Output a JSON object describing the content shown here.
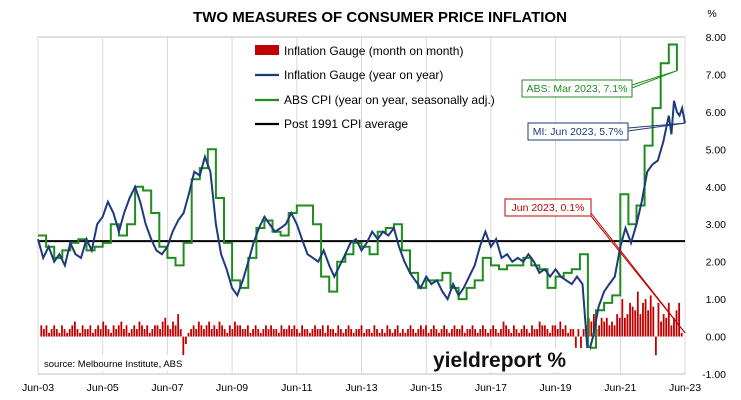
{
  "chart_data": {
    "type": "line",
    "title": "TWO MEASURES OF CONSUMER PRICE INFLATION",
    "y_unit": "%",
    "ylim": [
      -1.0,
      8.0
    ],
    "y_ticks": [
      "8.00",
      "7.00",
      "6.00",
      "5.00",
      "4.00",
      "3.00",
      "2.00",
      "1.00",
      "0.00",
      "-1.00"
    ],
    "y_tick_values": [
      8,
      7,
      6,
      5,
      4,
      3,
      2,
      1,
      0,
      -1
    ],
    "x_range": [
      2003.42,
      2023.42
    ],
    "x_ticks": [
      "Jun-03",
      "Jun-05",
      "Jun-07",
      "Jun-09",
      "Jun-11",
      "Jun-13",
      "Jun-15",
      "Jun-17",
      "Jun-19",
      "Jun-21",
      "Jun-23"
    ],
    "x_tick_values": [
      2003.42,
      2005.42,
      2007.42,
      2009.42,
      2011.42,
      2013.42,
      2015.42,
      2017.42,
      2019.42,
      2021.42,
      2023.42
    ],
    "grid": "vertical",
    "legend_position": "top-center",
    "legend": [
      {
        "label": "Inflation Gauge (month on month)",
        "color": "#c00000",
        "kind": "bar"
      },
      {
        "label": "Inflation Gauge (year on year)",
        "color": "#1f3a7a",
        "kind": "line"
      },
      {
        "label": "ABS CPI (year on year, seasonally adj.)",
        "color": "#1e8c1e",
        "kind": "line"
      },
      {
        "label": "Post 1991 CPI average",
        "color": "#000000",
        "kind": "line"
      }
    ],
    "average_line": {
      "label": "Post 1991 CPI average",
      "value": 2.55
    },
    "series": [
      {
        "name": "ABS CPI (year on year, seasonally adj.)",
        "color": "#1e8c1e",
        "step": true,
        "points": [
          [
            2003.42,
            2.7
          ],
          [
            2003.67,
            2.4
          ],
          [
            2003.92,
            2.1
          ],
          [
            2004.17,
            2.3
          ],
          [
            2004.42,
            2.5
          ],
          [
            2004.67,
            2.6
          ],
          [
            2004.92,
            2.3
          ],
          [
            2005.17,
            2.4
          ],
          [
            2005.42,
            2.5
          ],
          [
            2005.67,
            3.0
          ],
          [
            2005.92,
            2.7
          ],
          [
            2006.17,
            3.0
          ],
          [
            2006.42,
            4.0
          ],
          [
            2006.67,
            3.9
          ],
          [
            2006.92,
            3.3
          ],
          [
            2007.17,
            2.4
          ],
          [
            2007.42,
            2.1
          ],
          [
            2007.67,
            1.9
          ],
          [
            2007.92,
            2.5
          ],
          [
            2008.17,
            4.2
          ],
          [
            2008.42,
            4.5
          ],
          [
            2008.67,
            5.0
          ],
          [
            2008.92,
            3.7
          ],
          [
            2009.17,
            2.5
          ],
          [
            2009.42,
            1.5
          ],
          [
            2009.67,
            1.3
          ],
          [
            2009.92,
            2.1
          ],
          [
            2010.17,
            2.9
          ],
          [
            2010.42,
            3.1
          ],
          [
            2010.67,
            2.8
          ],
          [
            2010.92,
            2.7
          ],
          [
            2011.17,
            3.3
          ],
          [
            2011.42,
            3.5
          ],
          [
            2011.67,
            3.5
          ],
          [
            2011.92,
            3.0
          ],
          [
            2012.17,
            1.6
          ],
          [
            2012.42,
            1.2
          ],
          [
            2012.67,
            2.0
          ],
          [
            2012.92,
            2.2
          ],
          [
            2013.17,
            2.5
          ],
          [
            2013.42,
            2.4
          ],
          [
            2013.67,
            2.2
          ],
          [
            2013.92,
            2.8
          ],
          [
            2014.17,
            2.9
          ],
          [
            2014.42,
            3.0
          ],
          [
            2014.67,
            2.3
          ],
          [
            2014.92,
            1.7
          ],
          [
            2015.17,
            1.3
          ],
          [
            2015.42,
            1.5
          ],
          [
            2015.67,
            1.5
          ],
          [
            2015.92,
            1.7
          ],
          [
            2016.17,
            1.3
          ],
          [
            2016.42,
            1.0
          ],
          [
            2016.67,
            1.3
          ],
          [
            2016.92,
            1.5
          ],
          [
            2017.17,
            2.1
          ],
          [
            2017.42,
            1.9
          ],
          [
            2017.67,
            1.8
          ],
          [
            2017.92,
            1.9
          ],
          [
            2018.17,
            1.9
          ],
          [
            2018.42,
            2.1
          ],
          [
            2018.67,
            1.9
          ],
          [
            2018.92,
            1.8
          ],
          [
            2019.17,
            1.3
          ],
          [
            2019.42,
            1.6
          ],
          [
            2019.67,
            1.7
          ],
          [
            2019.92,
            1.8
          ],
          [
            2020.17,
            2.2
          ],
          [
            2020.42,
            -0.3
          ],
          [
            2020.67,
            0.7
          ],
          [
            2020.92,
            0.9
          ],
          [
            2021.17,
            1.1
          ],
          [
            2021.42,
            3.8
          ],
          [
            2021.67,
            3.0
          ],
          [
            2021.92,
            3.5
          ],
          [
            2022.17,
            5.1
          ],
          [
            2022.42,
            6.1
          ],
          [
            2022.67,
            7.3
          ],
          [
            2022.92,
            7.8
          ],
          [
            2023.17,
            7.1
          ]
        ]
      },
      {
        "name": "Inflation Gauge (year on year)",
        "color": "#1f3a7a",
        "step": false,
        "points": [
          [
            2003.42,
            2.6
          ],
          [
            2003.58,
            2.1
          ],
          [
            2003.75,
            2.4
          ],
          [
            2003.92,
            2.0
          ],
          [
            2004.08,
            2.2
          ],
          [
            2004.25,
            1.9
          ],
          [
            2004.42,
            2.5
          ],
          [
            2004.58,
            2.2
          ],
          [
            2004.75,
            2.1
          ],
          [
            2004.92,
            2.6
          ],
          [
            2005.08,
            2.3
          ],
          [
            2005.25,
            3.0
          ],
          [
            2005.42,
            3.2
          ],
          [
            2005.58,
            3.6
          ],
          [
            2005.75,
            3.3
          ],
          [
            2005.92,
            2.8
          ],
          [
            2006.08,
            3.3
          ],
          [
            2006.25,
            3.7
          ],
          [
            2006.42,
            4.0
          ],
          [
            2006.58,
            3.6
          ],
          [
            2006.75,
            3.0
          ],
          [
            2006.92,
            2.6
          ],
          [
            2007.08,
            2.3
          ],
          [
            2007.25,
            2.2
          ],
          [
            2007.42,
            2.4
          ],
          [
            2007.58,
            2.8
          ],
          [
            2007.75,
            3.1
          ],
          [
            2007.92,
            3.3
          ],
          [
            2008.08,
            3.8
          ],
          [
            2008.25,
            4.4
          ],
          [
            2008.42,
            4.3
          ],
          [
            2008.58,
            4.8
          ],
          [
            2008.75,
            4.4
          ],
          [
            2008.92,
            3.0
          ],
          [
            2009.08,
            2.2
          ],
          [
            2009.25,
            1.8
          ],
          [
            2009.42,
            1.3
          ],
          [
            2009.58,
            1.1
          ],
          [
            2009.75,
            1.5
          ],
          [
            2009.92,
            2.0
          ],
          [
            2010.08,
            2.5
          ],
          [
            2010.25,
            2.9
          ],
          [
            2010.42,
            3.2
          ],
          [
            2010.58,
            3.0
          ],
          [
            2010.75,
            2.8
          ],
          [
            2010.92,
            2.9
          ],
          [
            2011.08,
            3.0
          ],
          [
            2011.25,
            3.3
          ],
          [
            2011.42,
            3.0
          ],
          [
            2011.58,
            2.6
          ],
          [
            2011.75,
            2.2
          ],
          [
            2011.92,
            2.1
          ],
          [
            2012.08,
            2.0
          ],
          [
            2012.25,
            2.3
          ],
          [
            2012.42,
            1.9
          ],
          [
            2012.58,
            1.6
          ],
          [
            2012.75,
            1.9
          ],
          [
            2012.92,
            2.2
          ],
          [
            2013.08,
            2.5
          ],
          [
            2013.25,
            2.6
          ],
          [
            2013.42,
            2.3
          ],
          [
            2013.58,
            2.5
          ],
          [
            2013.75,
            2.8
          ],
          [
            2013.92,
            2.6
          ],
          [
            2014.08,
            2.8
          ],
          [
            2014.25,
            2.7
          ],
          [
            2014.42,
            2.9
          ],
          [
            2014.58,
            2.4
          ],
          [
            2014.75,
            2.0
          ],
          [
            2014.92,
            1.7
          ],
          [
            2015.08,
            1.5
          ],
          [
            2015.25,
            1.3
          ],
          [
            2015.42,
            1.6
          ],
          [
            2015.58,
            1.4
          ],
          [
            2015.75,
            1.5
          ],
          [
            2015.92,
            1.2
          ],
          [
            2016.08,
            1.0
          ],
          [
            2016.25,
            1.4
          ],
          [
            2016.42,
            1.1
          ],
          [
            2016.58,
            1.3
          ],
          [
            2016.75,
            1.6
          ],
          [
            2016.92,
            1.9
          ],
          [
            2017.08,
            2.4
          ],
          [
            2017.25,
            2.8
          ],
          [
            2017.42,
            2.4
          ],
          [
            2017.58,
            2.6
          ],
          [
            2017.75,
            2.1
          ],
          [
            2017.92,
            2.2
          ],
          [
            2018.08,
            2.0
          ],
          [
            2018.25,
            2.1
          ],
          [
            2018.42,
            2.0
          ],
          [
            2018.58,
            2.2
          ],
          [
            2018.75,
            2.0
          ],
          [
            2018.92,
            1.7
          ],
          [
            2019.08,
            1.8
          ],
          [
            2019.25,
            1.6
          ],
          [
            2019.42,
            1.8
          ],
          [
            2019.58,
            1.6
          ],
          [
            2019.75,
            1.5
          ],
          [
            2019.92,
            1.4
          ],
          [
            2020.08,
            1.6
          ],
          [
            2020.25,
            1.4
          ],
          [
            2020.42,
            -0.5
          ],
          [
            2020.58,
            0.0
          ],
          [
            2020.75,
            0.8
          ],
          [
            2020.92,
            1.2
          ],
          [
            2021.08,
            1.4
          ],
          [
            2021.25,
            1.6
          ],
          [
            2021.42,
            2.4
          ],
          [
            2021.58,
            2.9
          ],
          [
            2021.75,
            2.5
          ],
          [
            2021.92,
            3.0
          ],
          [
            2022.08,
            3.6
          ],
          [
            2022.25,
            4.4
          ],
          [
            2022.42,
            4.6
          ],
          [
            2022.58,
            4.7
          ],
          [
            2022.75,
            5.2
          ],
          [
            2022.92,
            5.9
          ],
          [
            2023.0,
            5.4
          ],
          [
            2023.08,
            6.3
          ],
          [
            2023.17,
            6.0
          ],
          [
            2023.25,
            5.9
          ],
          [
            2023.33,
            6.1
          ],
          [
            2023.42,
            5.7
          ]
        ]
      },
      {
        "name": "Inflation Gauge (month on month)",
        "color": "#c00000",
        "kind": "bar",
        "values": [
          0.3,
          0.2,
          0.3,
          0.1,
          0.2,
          0.3,
          0.2,
          0.1,
          0.3,
          0.2,
          0.1,
          0.2,
          0.3,
          0.4,
          0.2,
          0.1,
          0.3,
          0.2,
          0.2,
          0.3,
          0.1,
          0.2,
          0.3,
          0.2,
          0.4,
          0.3,
          0.2,
          0.1,
          0.3,
          0.2,
          0.3,
          0.4,
          0.2,
          0.3,
          0.1,
          0.2,
          0.3,
          0.2,
          0.4,
          0.3,
          0.2,
          0.3,
          0.1,
          0.2,
          0.3,
          0.3,
          0.2,
          0.4,
          0.5,
          0.3,
          0.2,
          0.4,
          0.3,
          0.6,
          0.2,
          -0.6,
          -0.2,
          0.1,
          0.2,
          0.3,
          0.2,
          0.4,
          0.3,
          0.2,
          0.3,
          0.4,
          0.2,
          0.3,
          0.2,
          0.4,
          0.3,
          0.2,
          0.1,
          0.3,
          0.2,
          0.4,
          0.3,
          0.3,
          0.2,
          0.2,
          0.3,
          0.1,
          0.2,
          0.3,
          0.2,
          0.1,
          0.2,
          0.3,
          0.2,
          0.3,
          0.2,
          0.2,
          0.1,
          0.3,
          0.2,
          0.2,
          0.3,
          0.2,
          0.3,
          0.2,
          0.1,
          0.3,
          0.2,
          0.2,
          0.1,
          0.2,
          0.3,
          0.2,
          0.2,
          0.3,
          0.1,
          0.3,
          0.2,
          0.2,
          0.1,
          0.3,
          0.2,
          0.1,
          0.2,
          0.3,
          0.2,
          0.1,
          0.2,
          0.2,
          0.3,
          0.1,
          0.2,
          0.2,
          0.1,
          0.3,
          0.2,
          0.1,
          0.2,
          0.1,
          0.3,
          0.2,
          0.1,
          0.2,
          0.3,
          0.1,
          0.2,
          0.1,
          0.2,
          0.3,
          0.2,
          0.1,
          0.2,
          0.3,
          0.2,
          0.3,
          0.1,
          0.2,
          0.3,
          0.2,
          0.1,
          0.2,
          0.3,
          0.2,
          0.1,
          0.2,
          0.3,
          0.2,
          0.2,
          0.3,
          0.1,
          0.2,
          0.2,
          0.3,
          0.2,
          0.1,
          0.2,
          0.3,
          0.2,
          0.1,
          0.2,
          0.3,
          0.2,
          0.1,
          0.2,
          0.4,
          0.3,
          0.2,
          0.1,
          0.3,
          0.2,
          0.1,
          0.2,
          0.3,
          0.2,
          0.1,
          0.3,
          0.2,
          0.2,
          0.4,
          0.3,
          0.3,
          0.2,
          0.1,
          0.3,
          0.3,
          0.2,
          0.4,
          0.2,
          0.3,
          0.1,
          0.2,
          0.2,
          -0.3,
          0.2,
          -0.5,
          0.2,
          0.3,
          0.5,
          0.4,
          0.6,
          0.2,
          0.3,
          0.5,
          0.4,
          0.5,
          0.3,
          0.4,
          0.3,
          0.6,
          0.5,
          1.0,
          0.5,
          0.6,
          0.9,
          0.8,
          0.7,
          1.2,
          0.6,
          0.9,
          1.0,
          0.7,
          1.1,
          0.8,
          -0.5,
          0.9,
          0.4,
          0.6,
          0.5,
          0.9,
          0.3,
          0.5,
          0.7,
          0.9,
          0.1
        ]
      }
    ],
    "annotations": [
      {
        "text": "ABS: Mar 2023, 7.1%",
        "color": "#1e8c1e",
        "target": [
          2023.17,
          7.1
        ]
      },
      {
        "text": "MI: Jun 2023, 5.7%",
        "color": "#1f3a7a",
        "target": [
          2023.42,
          5.7
        ]
      },
      {
        "text": "Jun 2023, 0.1%",
        "color": "#c00000",
        "target": [
          2023.42,
          0.1
        ]
      }
    ],
    "source": "source: Melbourne Institute, ABS",
    "logo": "yieldreport %"
  }
}
